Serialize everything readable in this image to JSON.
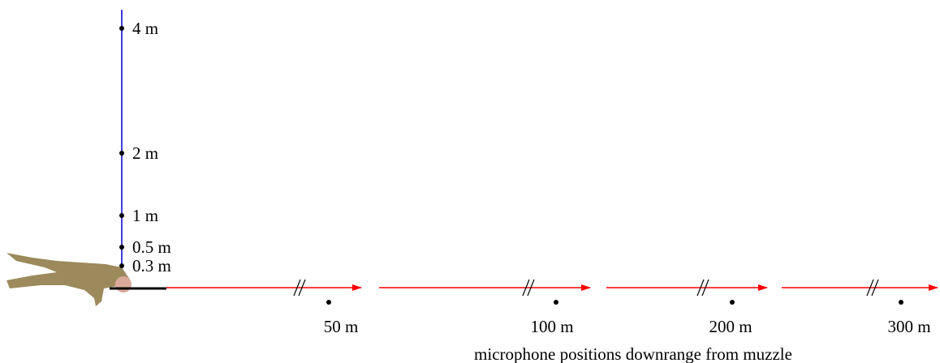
{
  "vertical_positions": [
    "4 m",
    "2 m",
    "1 m",
    "0.5 m",
    "0.3 m"
  ],
  "downrange_positions": [
    "50 m",
    "100 m",
    "200 m",
    "300 m"
  ],
  "caption": "microphone positions downrange from muzzle"
}
